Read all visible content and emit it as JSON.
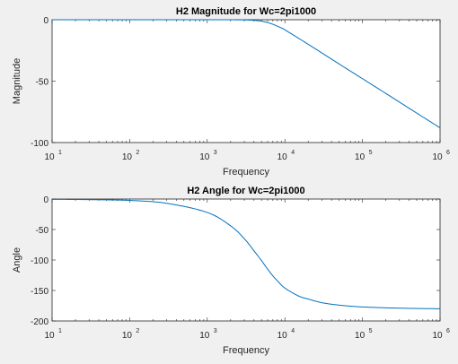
{
  "chart_data": [
    {
      "type": "line",
      "title": "H2 Magnitude for Wc=2pi1000",
      "xlabel": "Frequency",
      "ylabel": "Magnitude",
      "xscale": "log",
      "xlim": [
        10,
        1000000
      ],
      "ylim": [
        -100,
        0
      ],
      "xticks": [
        {
          "base": "10",
          "exp": "1"
        },
        {
          "base": "10",
          "exp": "2"
        },
        {
          "base": "10",
          "exp": "3"
        },
        {
          "base": "10",
          "exp": "4"
        },
        {
          "base": "10",
          "exp": "5"
        },
        {
          "base": "10",
          "exp": "6"
        }
      ],
      "yticks": [
        "0",
        "-50",
        "-100"
      ],
      "color": "#0072bd",
      "series": [
        {
          "x": [
            10,
            100,
            1000,
            2000,
            3000,
            4000,
            5000,
            6000,
            7000,
            8000,
            9000,
            10000,
            20000,
            50000,
            100000,
            200000,
            500000,
            1000000
          ],
          "y": [
            0,
            0,
            0,
            -0.03,
            -0.15,
            -0.5,
            -1.2,
            -2.3,
            -3.7,
            -5.2,
            -6.7,
            -8.2,
            -20,
            -36,
            -48,
            -60,
            -76,
            -88
          ]
        }
      ]
    },
    {
      "type": "line",
      "title": "H2 Angle for Wc=2pi1000",
      "xlabel": "Frequency",
      "ylabel": "Angle",
      "xscale": "log",
      "xlim": [
        10,
        1000000
      ],
      "ylim": [
        -200,
        0
      ],
      "xticks": [
        {
          "base": "10",
          "exp": "1"
        },
        {
          "base": "10",
          "exp": "2"
        },
        {
          "base": "10",
          "exp": "3"
        },
        {
          "base": "10",
          "exp": "4"
        },
        {
          "base": "10",
          "exp": "5"
        },
        {
          "base": "10",
          "exp": "6"
        }
      ],
      "yticks": [
        "0",
        "-50",
        "-100",
        "-150",
        "-200"
      ],
      "color": "#0072bd",
      "series": [
        {
          "x": [
            10,
            30,
            100,
            300,
            1000,
            2000,
            3000,
            4000,
            5000,
            6000,
            7000,
            8000,
            10000,
            15000,
            20000,
            30000,
            50000,
            100000,
            300000,
            1000000
          ],
          "y": [
            -0.5,
            -1,
            -2.3,
            -7,
            -22,
            -44,
            -65,
            -85,
            -101,
            -115,
            -126,
            -134,
            -146,
            -159,
            -164,
            -170,
            -174,
            -177,
            -179,
            -180
          ]
        }
      ]
    }
  ]
}
